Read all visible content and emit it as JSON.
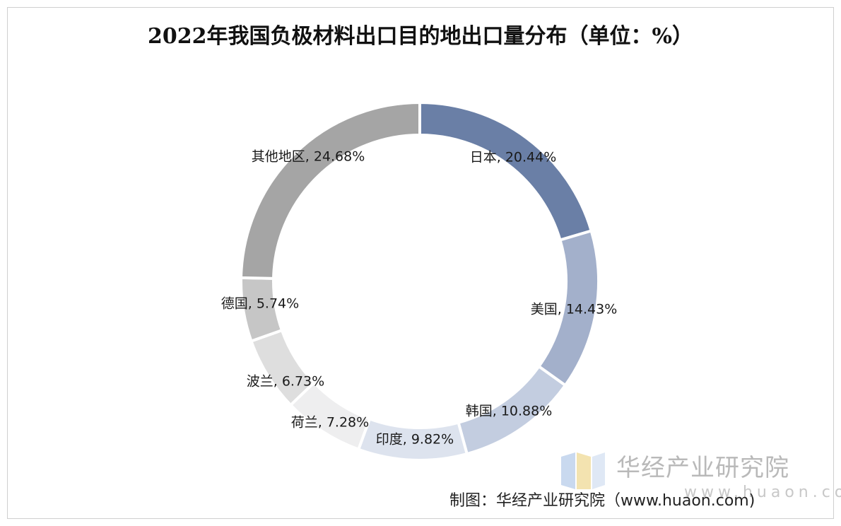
{
  "chart_data": {
    "type": "pie",
    "title": "2022年我国负极材料出口目的地出口量分布（单位：%）",
    "labels": [
      "日本",
      "美国",
      "韩国",
      "印度",
      "荷兰",
      "波兰",
      "德国",
      "其他地区"
    ],
    "values": [
      20.44,
      14.43,
      10.88,
      9.82,
      7.28,
      6.73,
      5.74,
      24.68
    ],
    "display_labels": [
      "日本, 20.44%",
      "美国, 14.43%",
      "韩国, 10.88%",
      "印度, 9.82%",
      "荷兰, 7.28%",
      "波兰, 6.73%",
      "德国, 5.74%",
      "其他地区, 24.68%"
    ],
    "colors": [
      "#6a7fa6",
      "#a3b0cb",
      "#c3cde0",
      "#dde3ee",
      "#eeeeef",
      "#dedede",
      "#c6c6c6",
      "#a5a5a5"
    ],
    "donut": true
  },
  "source": "制图：华经产业研究院（www.huaon.com)",
  "watermark": {
    "name": "华经产业研究院",
    "url": "www.huaon.com"
  }
}
